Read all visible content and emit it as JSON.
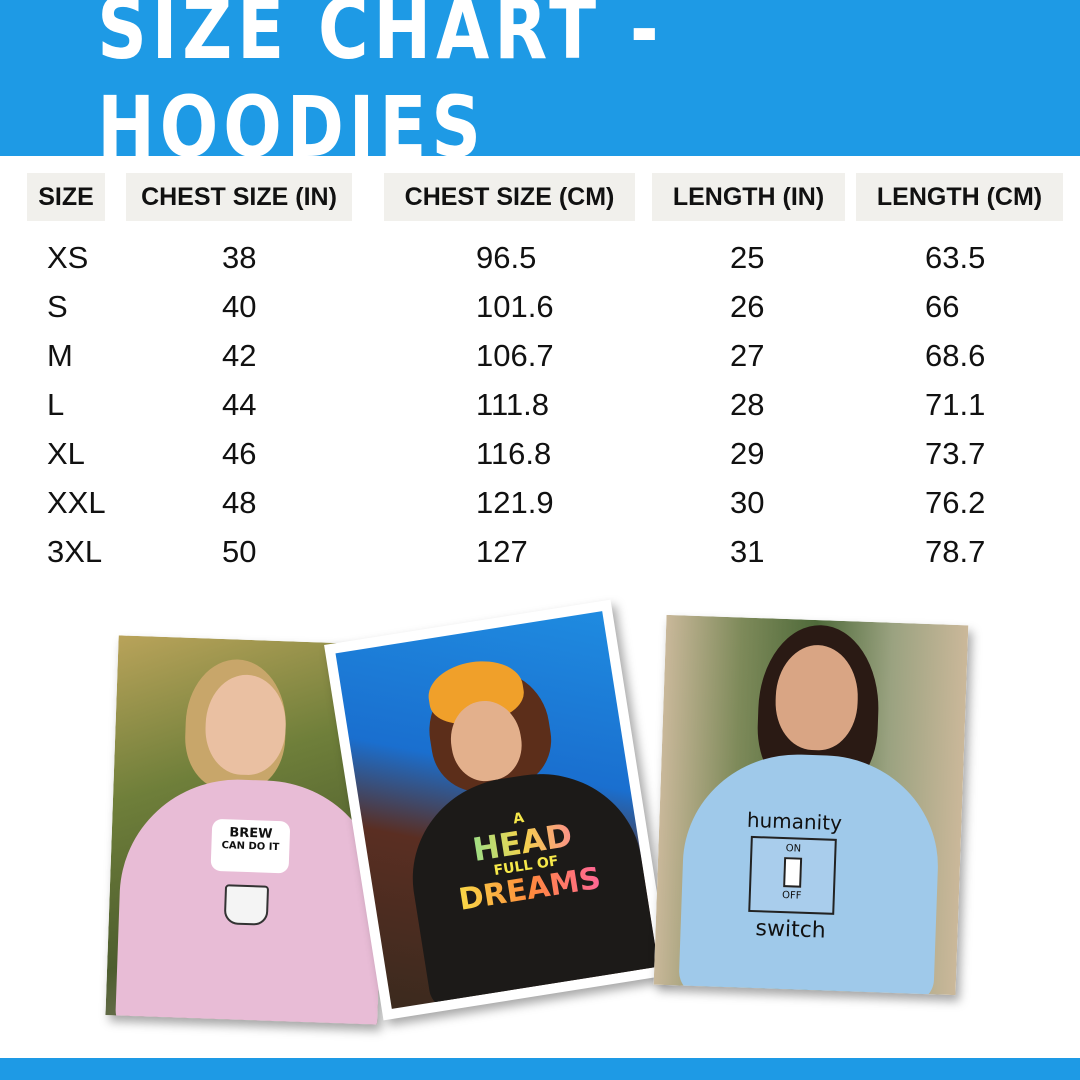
{
  "title": "SIZE CHART - HOODIES",
  "colors": {
    "accent": "#1e9ae5",
    "header_cell_bg": "#f1f0ec"
  },
  "table": {
    "headers": [
      "SIZE",
      "CHEST SIZE (IN)",
      "CHEST SIZE (CM)",
      "LENGTH (IN)",
      "LENGTH (CM)"
    ],
    "rows": [
      [
        "XS",
        "38",
        "96.5",
        "25",
        "63.5"
      ],
      [
        "S",
        "40",
        "101.6",
        "26",
        "66"
      ],
      [
        "M",
        "42",
        "106.7",
        "27",
        "68.6"
      ],
      [
        "L",
        "44",
        "111.8",
        "28",
        "71.1"
      ],
      [
        "XL",
        "46",
        "116.8",
        "29",
        "73.7"
      ],
      [
        "XXL",
        "48",
        "121.9",
        "30",
        "76.2"
      ],
      [
        "3XL",
        "50",
        "127",
        "31",
        "78.7"
      ]
    ]
  },
  "photos": [
    {
      "hoodie_color": "#e8bcd6",
      "print": [
        "BREW",
        "CAN DO IT"
      ]
    },
    {
      "hoodie_color": "#1c1a18",
      "print": [
        "A",
        "HEAD",
        "FULL OF",
        "DREAMS"
      ]
    },
    {
      "hoodie_color": "#9fc9ea",
      "print": [
        "humanity",
        "ON",
        "OFF",
        "switch"
      ]
    }
  ]
}
